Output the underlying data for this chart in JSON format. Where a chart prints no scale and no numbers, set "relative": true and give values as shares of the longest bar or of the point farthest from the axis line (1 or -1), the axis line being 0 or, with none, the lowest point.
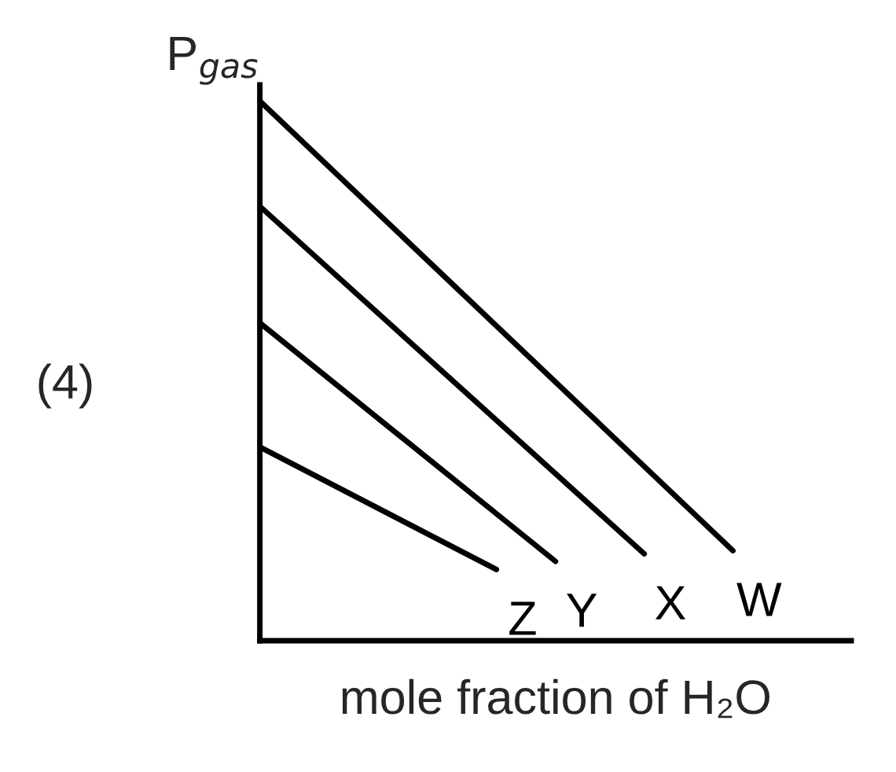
{
  "chart_data": {
    "type": "line",
    "relative": true,
    "ylabel": "P$_{gas}$",
    "xlabel": "mole fraction of H₂O",
    "annotations": [
      "(4)"
    ],
    "marker": "none",
    "line_style": "solid",
    "categories": [
      null,
      null,
      null,
      null,
      null,
      null,
      null,
      null,
      null,
      null,
      null,
      null,
      null,
      null,
      null,
      null,
      null,
      null,
      null,
      null,
      null
    ],
    "series": [
      {
        "name": "Z",
        "color": "#000000",
        "values": [
          0.359,
          null,
          null,
          null,
          null,
          null,
          null,
          null,
          0.132,
          null,
          null,
          null,
          null,
          null,
          null,
          null,
          null,
          null,
          null,
          null,
          null
        ]
      },
      {
        "name": "Y",
        "color": "#000000",
        "values": [
          0.589,
          null,
          null,
          null,
          null,
          null,
          null,
          null,
          null,
          null,
          0.147,
          null,
          null,
          null,
          null,
          null,
          null,
          null,
          null,
          null,
          null
        ]
      },
      {
        "name": "X",
        "color": "#000000",
        "values": [
          0.805,
          null,
          null,
          null,
          null,
          null,
          null,
          null,
          null,
          null,
          null,
          null,
          null,
          0.161,
          null,
          null,
          null,
          null,
          null,
          null,
          null
        ]
      },
      {
        "name": "W",
        "color": "#000000",
        "values": [
          1,
          null,
          null,
          null,
          null,
          null,
          null,
          null,
          null,
          null,
          null,
          null,
          null,
          null,
          null,
          null,
          0.167,
          null,
          null,
          null,
          null
        ]
      }
    ]
  }
}
